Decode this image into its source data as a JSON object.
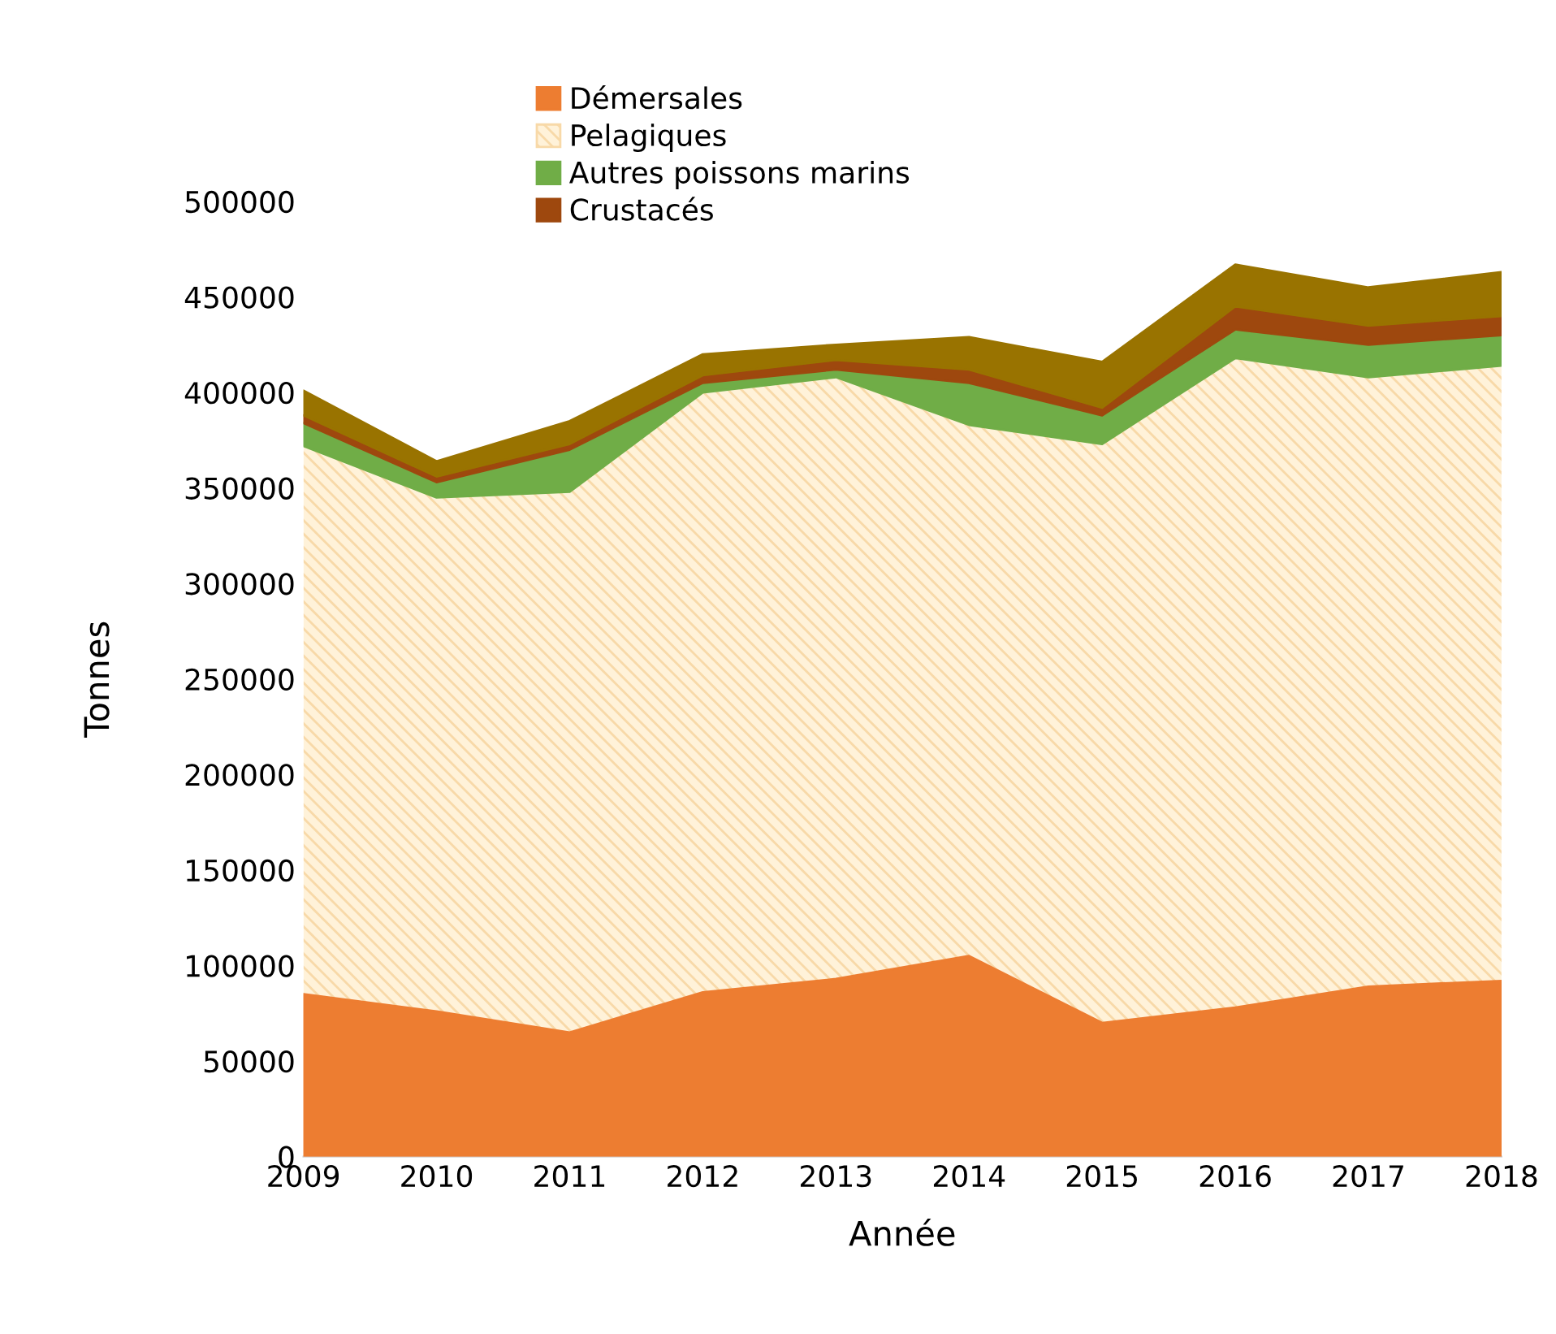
{
  "chart_data": {
    "type": "area",
    "stacked": true,
    "xlabel": "Année",
    "ylabel": "Tonnes",
    "x": [
      2009,
      2010,
      2011,
      2012,
      2013,
      2014,
      2015,
      2016,
      2017,
      2018
    ],
    "xlim": [
      2009,
      2018
    ],
    "xticks": [
      2009,
      2010,
      2011,
      2012,
      2013,
      2014,
      2015,
      2016,
      2017,
      2018
    ],
    "ylim": [
      0,
      500000
    ],
    "yticks": [
      0,
      50000,
      100000,
      150000,
      200000,
      250000,
      300000,
      350000,
      400000,
      450000,
      500000
    ],
    "grid": false,
    "legend": "top",
    "series": [
      {
        "name": "Démersales",
        "color": "#ed7d31",
        "values": [
          85000,
          76000,
          65000,
          86000,
          93000,
          105000,
          70000,
          78000,
          89000,
          92000
        ]
      },
      {
        "name": "Pelagiques",
        "color": "#fff2d9",
        "values": [
          287000,
          269000,
          283000,
          314000,
          315000,
          278000,
          303000,
          340000,
          319000,
          322000
        ]
      },
      {
        "name": "Autres poissons marins",
        "color": "#70ad47",
        "values": [
          12000,
          8000,
          22000,
          5000,
          4000,
          22000,
          15000,
          15000,
          17000,
          16000
        ]
      },
      {
        "name": "Crustacés",
        "color": "#9e480e",
        "values": [
          4000,
          3000,
          3000,
          4000,
          5000,
          7000,
          4000,
          12000,
          10000,
          10000
        ]
      },
      {
        "color": "#997300",
        "values": [
          13000,
          8000,
          12000,
          11000,
          8000,
          17000,
          24000,
          22000,
          20000,
          23000
        ]
      }
    ]
  }
}
